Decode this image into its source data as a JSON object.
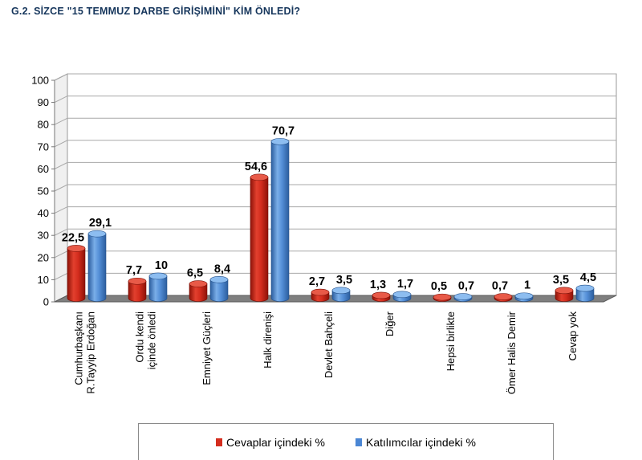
{
  "chart_data": {
    "type": "bar",
    "title": "G.2. SİZCE \"15 TEMMUZ DARBE GİRİŞİMİNİ\" KİM ÖNLEDİ?",
    "categories": [
      [
        "Cumhurbaşkanı",
        "R.Tayyip Erdoğan"
      ],
      [
        "Ordu kendi",
        "içinde önledi"
      ],
      [
        "Emniyet Güçleri"
      ],
      [
        "Halk direnişi"
      ],
      [
        "Devlet Bahçeli"
      ],
      [
        "Diğer"
      ],
      [
        "Hepsi birlikte"
      ],
      [
        "Ömer Halis Demir"
      ],
      [
        "Cevap yok"
      ]
    ],
    "series": [
      {
        "name": "Cevaplar içindeki %",
        "color": "#d42d1e",
        "values": [
          22.5,
          7.7,
          6.5,
          54.6,
          2.7,
          1.3,
          0.5,
          0.7,
          3.5
        ],
        "labels": [
          "22,5",
          "7,7",
          "6,5",
          "54,6",
          "2,7",
          "1,3",
          "0,5",
          "0,7",
          "3,5"
        ]
      },
      {
        "name": "Katılımcılar içindeki %",
        "color": "#4a86d4",
        "values": [
          29.1,
          10,
          8.4,
          70.7,
          3.5,
          1.7,
          0.7,
          1,
          4.5
        ],
        "labels": [
          "29,1",
          "10",
          "8,4",
          "70,7",
          "3,5",
          "1,7",
          "0,7",
          "1",
          "4,5"
        ]
      }
    ],
    "ylim": [
      0,
      100
    ],
    "yticks": [
      0,
      10,
      20,
      30,
      40,
      50,
      60,
      70,
      80,
      90,
      100
    ],
    "grid": true,
    "legend_position": "bottom"
  }
}
